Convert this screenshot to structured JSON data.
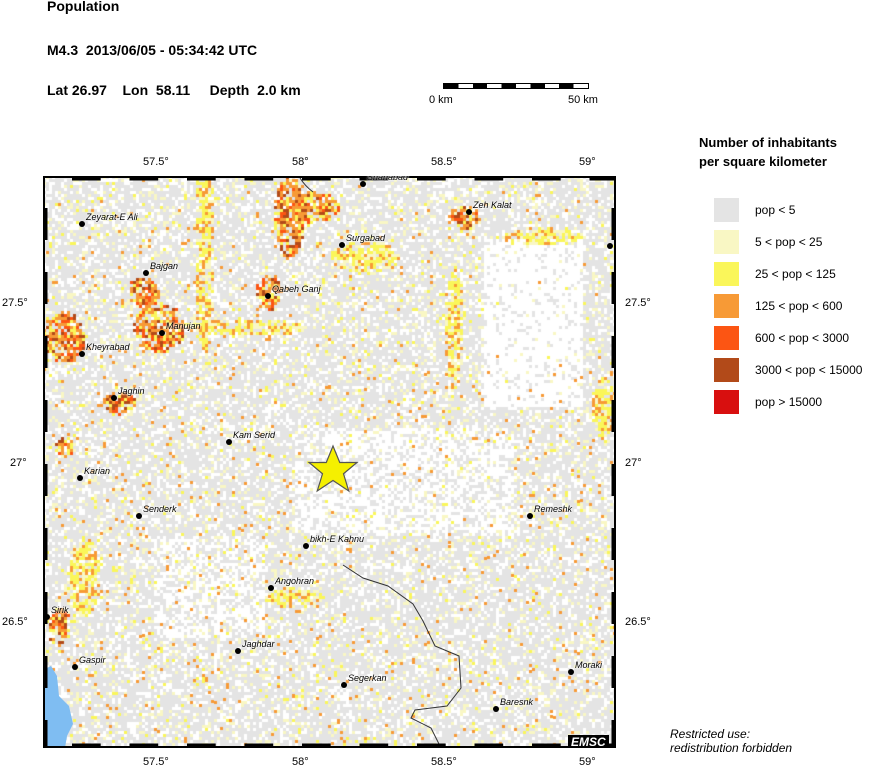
{
  "header": {
    "title": "Population",
    "event": "M4.3  2013/06/05 - 05:34:42 UTC",
    "location": "Lat 26.97    Lon  58.11     Depth  2.0 km"
  },
  "scale_bar": {
    "start": "0 km",
    "end": "50 km"
  },
  "axes": {
    "lon_ticks": [
      "57.5°",
      "58°",
      "58.5°",
      "59°"
    ],
    "lat_ticks": [
      "27.5°",
      "27°",
      "26.5°"
    ]
  },
  "epicenter": {
    "lat": 26.97,
    "lon": 58.11,
    "color": "#f5f000",
    "icon": "star-icon"
  },
  "cities": [
    {
      "name": "Shahabad"
    },
    {
      "name": "Zeh Kalat"
    },
    {
      "name": "Surgabad"
    },
    {
      "name": "Zeyarat-E Ali"
    },
    {
      "name": "Bajgan"
    },
    {
      "name": "Qabeh Ganj"
    },
    {
      "name": "Manujan"
    },
    {
      "name": "Kheyrabad"
    },
    {
      "name": "Jaghin"
    },
    {
      "name": "Kam Serid"
    },
    {
      "name": "Karian"
    },
    {
      "name": "Senderk"
    },
    {
      "name": "bikh-E Kahnu"
    },
    {
      "name": "Angohran"
    },
    {
      "name": "Remeshk"
    },
    {
      "name": "Sirik"
    },
    {
      "name": "Jaghdar"
    },
    {
      "name": "Gaspir"
    },
    {
      "name": "Segerkan"
    },
    {
      "name": "Moraki"
    },
    {
      "name": "Baresnk"
    }
  ],
  "legend": {
    "title_line1": "Number of inhabitants",
    "title_line2": "per square kilometer",
    "items": [
      {
        "label": "pop < 5",
        "color": "#e4e4e4"
      },
      {
        "label": "5 < pop < 25",
        "color": "#f9f7c4"
      },
      {
        "label": "25 < pop < 125",
        "color": "#faf65a"
      },
      {
        "label": "125 < pop < 600",
        "color": "#f79a36"
      },
      {
        "label": "600 < pop < 3000",
        "color": "#fc5513"
      },
      {
        "label": "3000 < pop < 15000",
        "color": "#b24a19"
      },
      {
        "label": "pop > 15000",
        "color": "#d80f0f"
      }
    ]
  },
  "colors": {
    "sea": "#7fbdf2",
    "border": "#333333"
  },
  "logo": "EMSC",
  "note_line1": "Restricted use:",
  "note_line2": "redistribution forbidden"
}
